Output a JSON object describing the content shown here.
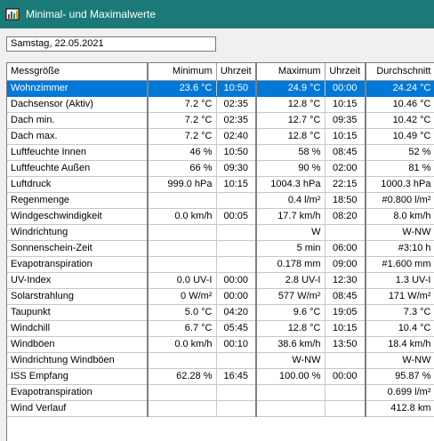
{
  "window": {
    "title": "Minimal- und Maximalwerte",
    "icon": "chart-app-icon"
  },
  "date_field": {
    "value": "Samstag, 22.05.2021"
  },
  "table": {
    "headers": [
      "Messgröße",
      "Minimum",
      "Uhrzeit",
      "Maximum",
      "Uhrzeit",
      "Durchschnitt"
    ],
    "selected_row": 0,
    "rows": [
      [
        "Wohnzimmer",
        "23.6 °C",
        "10:50",
        "24.9 °C",
        "00:00",
        "24.24 °C"
      ],
      [
        "Dachsensor (Aktiv)",
        "7.2 °C",
        "02:35",
        "12.8 °C",
        "10:15",
        "10.46 °C"
      ],
      [
        "Dach min.",
        "7.2 °C",
        "02:35",
        "12.7 °C",
        "09:35",
        "10.42 °C"
      ],
      [
        "Dach max.",
        "7.2 °C",
        "02:40",
        "12.8 °C",
        "10:15",
        "10.49 °C"
      ],
      [
        "Luftfeuchte Innen",
        "46 %",
        "10:50",
        "58 %",
        "08:45",
        "52 %"
      ],
      [
        "Luftfeuchte Außen",
        "66 %",
        "09:30",
        "90 %",
        "02:00",
        "81 %"
      ],
      [
        "Luftdruck",
        "999.0 hPa",
        "10:15",
        "1004.3 hPa",
        "22:15",
        "1000.3 hPa"
      ],
      [
        "Regenmenge",
        "",
        "",
        "0.4 l/m²",
        "18:50",
        "#0.800 l/m²"
      ],
      [
        "Windgeschwindigkeit",
        "0.0 km/h",
        "00:05",
        "17.7 km/h",
        "08:20",
        "8.0 km/h"
      ],
      [
        "Windrichtung",
        "",
        "",
        "W",
        "",
        "W-NW"
      ],
      [
        "Sonnenschein-Zeit",
        "",
        "",
        "5 min",
        "06:00",
        "#3:10 h"
      ],
      [
        "Evapotranspiration",
        "",
        "",
        "0.178 mm",
        "09:00",
        "#1.600 mm"
      ],
      [
        "UV-Index",
        "0.0 UV-I",
        "00:00",
        "2.8 UV-I",
        "12:30",
        "1.3 UV-I"
      ],
      [
        "Solarstrahlung",
        "0 W/m²",
        "00:00",
        "577 W/m²",
        "08:45",
        "171 W/m²"
      ],
      [
        "Taupunkt",
        "5.0 °C",
        "04:20",
        "9.6 °C",
        "19:05",
        "7.3 °C"
      ],
      [
        "Windchill",
        "6.7 °C",
        "05:45",
        "12.8 °C",
        "10:15",
        "10.4 °C"
      ],
      [
        "Windböen",
        "0.0 km/h",
        "00:10",
        "38.6 km/h",
        "13:50",
        "18.4 km/h"
      ],
      [
        "Windrichtung Windböen",
        "",
        "",
        "W-NW",
        "",
        "W-NW"
      ],
      [
        "ISS Empfang",
        "62.28 %",
        "16:45",
        "100.00 %",
        "00:00",
        "95.87 %"
      ],
      [
        "Evapotranspiration",
        "",
        "",
        "",
        "",
        "0.699 l/m²"
      ],
      [
        "Wind Verlauf",
        "",
        "",
        "",
        "",
        "412.8 km"
      ]
    ]
  }
}
